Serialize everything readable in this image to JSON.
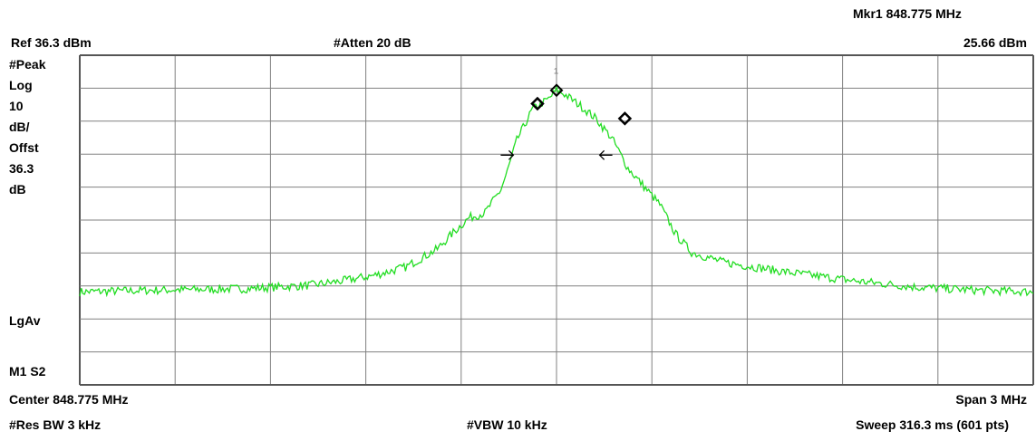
{
  "header": {
    "marker_label": "Mkr1  848.775 MHz",
    "ref_level": "Ref 36.3 dBm",
    "attenuation": "#Atten 20 dB",
    "marker_value": "25.66 dBm"
  },
  "side_labels": {
    "detector": "#Peak",
    "scale_type": "Log",
    "scale_value": "10",
    "scale_unit": "dB/",
    "offset_label": "Offst",
    "offset_value": "36.3",
    "offset_unit": "dB",
    "avg_mode": "LgAv",
    "marker_mode": "M1  S2"
  },
  "footer": {
    "center": "Center 848.775 MHz",
    "span": "Span 3 MHz",
    "res_bw": "#Res BW 3 kHz",
    "vbw": "#VBW 10 kHz",
    "sweep": "Sweep 316.3 ms (601 pts)"
  },
  "chart_data": {
    "type": "line",
    "x_unit": "MHz",
    "y_unit": "dBm",
    "xlim": [
      847.275,
      850.275
    ],
    "ylim": [
      -63.7,
      36.3
    ],
    "grid": true,
    "divisions": {
      "x": 10,
      "y": 10
    },
    "trace_color": "#22dd22",
    "grid_color": "#808080",
    "series": [
      {
        "x": [
          847.275,
          847.5,
          847.8,
          848.0,
          848.1,
          848.2,
          848.3,
          848.4,
          848.45,
          848.5,
          848.55,
          848.6,
          848.62,
          848.65,
          848.7,
          848.75,
          848.775,
          848.8,
          848.85,
          848.9,
          848.95,
          849.0,
          849.05,
          849.1,
          849.15,
          849.2,
          849.3,
          849.4,
          849.5,
          849.7,
          849.9,
          850.1,
          850.275
        ],
        "y": [
          -35.5,
          -35.0,
          -34.5,
          -33.5,
          -32.2,
          -30.5,
          -28.0,
          -22.5,
          -17.5,
          -13.0,
          -11.5,
          -4.5,
          1.0,
          10.5,
          20.0,
          23.0,
          25.66,
          24.5,
          21.0,
          17.0,
          11.0,
          2.0,
          -3.5,
          -9.0,
          -18.0,
          -23.5,
          -26.5,
          -28.0,
          -29.5,
          -32.0,
          -34.0,
          -35.0,
          -35.5
        ]
      }
    ],
    "markers": [
      {
        "label": "1",
        "x": 848.775,
        "y": 25.66
      }
    ],
    "bandwidth_markers": [
      {
        "x": 848.715,
        "y": 21.6
      },
      {
        "x": 848.99,
        "y": 17.1
      }
    ],
    "channel_edges": [
      {
        "x": 848.625,
        "arrow": "right",
        "y": 6.0
      },
      {
        "x": 848.925,
        "arrow": "left",
        "y": 6.0
      }
    ]
  }
}
